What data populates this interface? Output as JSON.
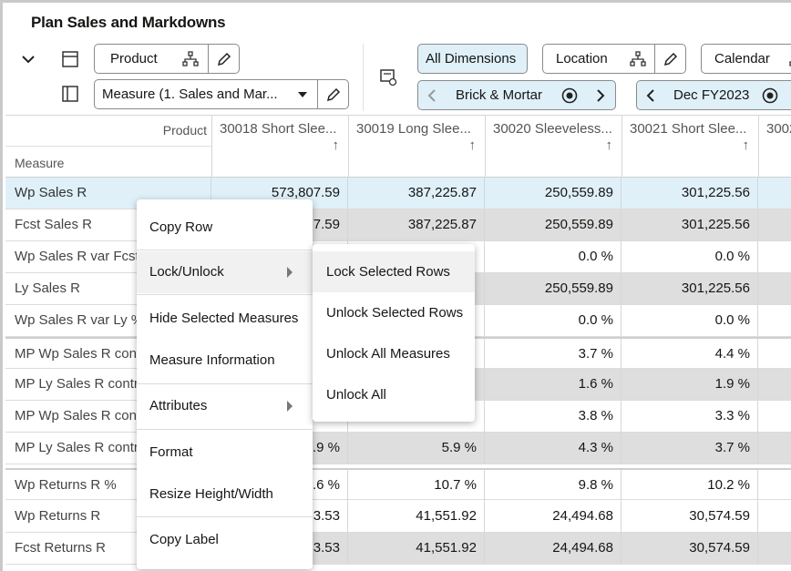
{
  "page_title": "Plan Sales and Markdowns",
  "toolbar": {
    "product_label": "Product",
    "measure_select": "Measure (1. Sales and Mar...",
    "all_dimensions": "All Dimensions",
    "location_label": "Location",
    "calendar_label": "Calendar",
    "location_value": "Brick & Mortar",
    "calendar_value": "Dec FY2023"
  },
  "grid": {
    "corner_product": "Product",
    "corner_measure": "Measure",
    "columns": [
      "30018 Short Slee...",
      "30019 Long Slee...",
      "30020 Sleeveless...",
      "30021 Short Slee...",
      "3002"
    ],
    "sort_arrow": "↑",
    "rows": [
      {
        "name": "Wp Sales R",
        "values": [
          "573,807.59",
          "387,225.87",
          "250,559.89",
          "301,225.56"
        ]
      },
      {
        "name": "Fcst Sales R",
        "values": [
          "7.59",
          "387,225.87",
          "250,559.89",
          "301,225.56"
        ]
      },
      {
        "name": "Wp Sales R var Fcst S",
        "values": [
          "",
          "",
          "0.0 %",
          "0.0 %"
        ]
      },
      {
        "name": "Ly Sales R",
        "values": [
          "",
          "",
          "250,559.89",
          "301,225.56"
        ]
      },
      {
        "name": "Wp Sales R var Ly %",
        "values": [
          "",
          "",
          "0.0 %",
          "0.0 %"
        ]
      },
      {
        "name": "MP Wp Sales R contri",
        "values": [
          "",
          "",
          "3.7 %",
          "4.4 %"
        ]
      },
      {
        "name": "MP Ly Sales R contri",
        "values": [
          "",
          "",
          "1.6 %",
          "1.9 %"
        ]
      },
      {
        "name": "MP Wp Sales R contri",
        "values": [
          "",
          "",
          "3.8 %",
          "3.3 %"
        ]
      },
      {
        "name": "MP Ly Sales R contri",
        "values": [
          ".9 %",
          "5.9 %",
          "4.3 %",
          "3.7 %"
        ]
      },
      {
        "name": "Wp Returns R %",
        "values": [
          ".6 %",
          "10.7 %",
          "9.8 %",
          "10.2 %"
        ]
      },
      {
        "name": "Wp Returns R",
        "values": [
          "3.53",
          "41,551.92",
          "24,494.68",
          "30,574.59"
        ]
      },
      {
        "name": "Fcst Returns R",
        "values": [
          "3.53",
          "41,551.92",
          "24,494.68",
          "30,574.59"
        ]
      }
    ]
  },
  "context_menu": {
    "items": [
      "Copy Row",
      "Lock/Unlock",
      "Hide Selected Measures",
      "Measure Information",
      "Attributes",
      "Format",
      "Resize Height/Width",
      "Copy Label"
    ]
  },
  "submenu": {
    "items": [
      "Lock Selected Rows",
      "Unlock Selected Rows",
      "Unlock All Measures",
      "Unlock All"
    ]
  },
  "colors": {
    "selected_row": "#dff0f9",
    "gray_cell": "#dedede",
    "active_pill": "#dff0f9"
  }
}
